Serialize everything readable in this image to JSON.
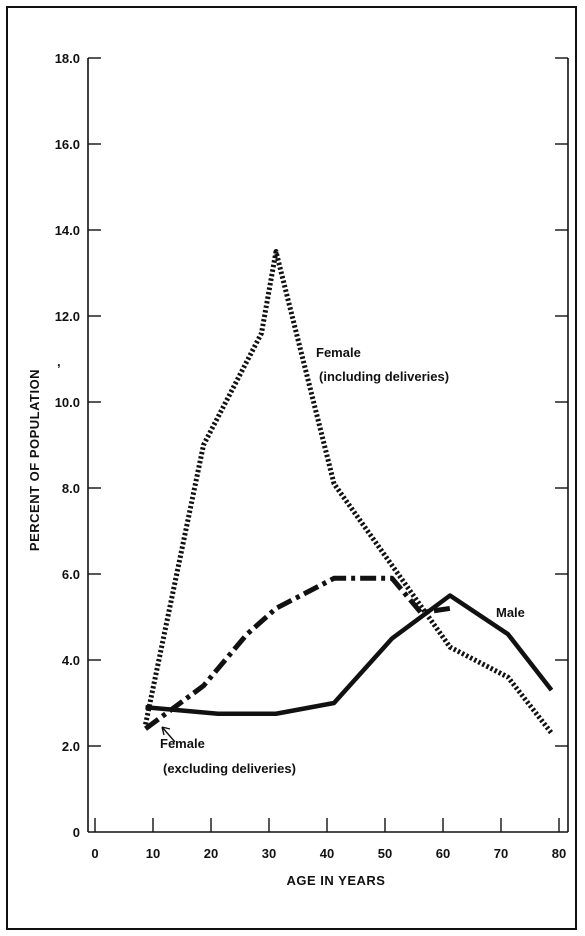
{
  "chart_data": {
    "type": "line",
    "xlabel": "AGE IN YEARS",
    "ylabel": "PERCENT OF POPULATION",
    "xlim": [
      0,
      80
    ],
    "ylim": [
      0,
      18
    ],
    "x_ticks": [
      "0",
      "10",
      "20",
      "30",
      "40",
      "50",
      "60",
      "70",
      "80"
    ],
    "y_ticks": [
      "0",
      "2.0",
      "4.0",
      "6.0",
      "8.0",
      "10.0",
      "12.0",
      "14.0",
      "16.0",
      "18.0"
    ],
    "grid": false,
    "series": [
      {
        "name": "Female (including deliveries)",
        "style": "dotted",
        "x": [
          7.5,
          17.5,
          27.5,
          30,
          40,
          50,
          60,
          70,
          77.5
        ],
        "y": [
          2.5,
          9.0,
          11.6,
          13.5,
          8.1,
          6.2,
          4.3,
          3.6,
          2.3
        ]
      },
      {
        "name": "Female (excluding deliveries)",
        "style": "dashdot",
        "x": [
          7.5,
          17.5,
          25,
          30,
          40,
          50,
          55,
          60
        ],
        "y": [
          2.4,
          3.4,
          4.6,
          5.2,
          5.9,
          5.9,
          5.1,
          5.2
        ]
      },
      {
        "name": "Male",
        "style": "solid",
        "x": [
          7.5,
          20,
          30,
          40,
          50,
          60,
          70,
          77.5
        ],
        "y": [
          2.9,
          2.75,
          2.75,
          3.0,
          4.5,
          5.5,
          4.6,
          3.3
        ]
      }
    ],
    "annotations": {
      "female_incl_line1": "Female",
      "female_incl_line2": "(including deliveries)",
      "male": "Male",
      "female_excl_line1": "Female",
      "female_excl_line2": "(excluding deliveries)"
    },
    "stray_mark": ","
  }
}
